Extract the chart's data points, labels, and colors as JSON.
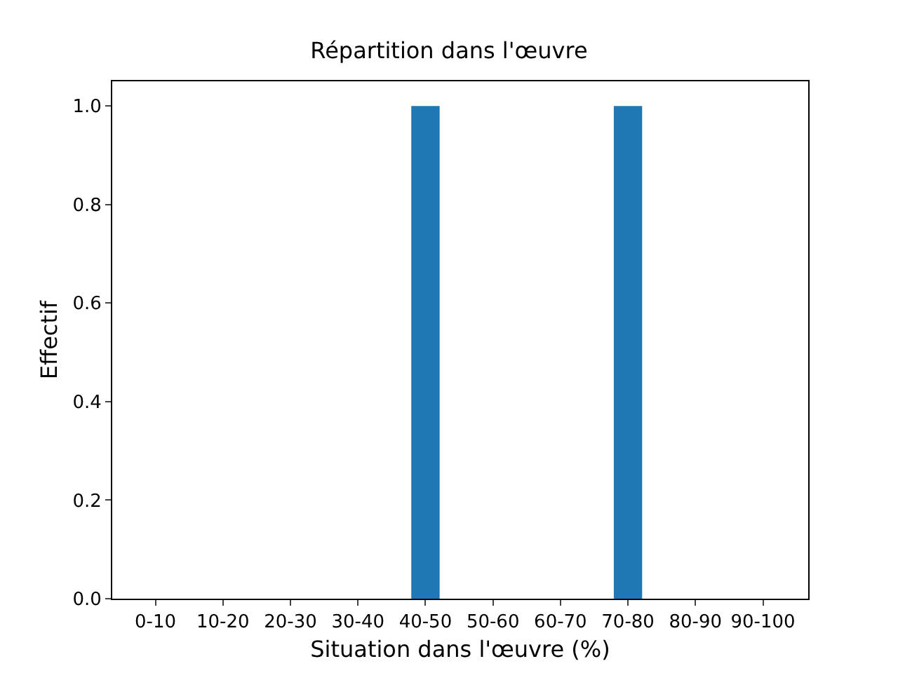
{
  "chart_data": {
    "type": "bar",
    "title": "Répartition dans l'œuvre",
    "xlabel": "Situation dans l'œuvre (%)",
    "ylabel": "Effectif",
    "categories": [
      "0-10",
      "10-20",
      "20-30",
      "30-40",
      "40-50",
      "50-60",
      "60-70",
      "70-80",
      "80-90",
      "90-100"
    ],
    "values": [
      0,
      0,
      0,
      0,
      1,
      0,
      0,
      1,
      0,
      0
    ],
    "color": "#1f77b4",
    "ylim": [
      0,
      1.05
    ],
    "yticks": [
      {
        "value": 0,
        "label": "0.0"
      },
      {
        "value": 0.2,
        "label": "0.2"
      },
      {
        "value": 0.4,
        "label": "0.4"
      },
      {
        "value": 0.6,
        "label": "0.6"
      },
      {
        "value": 0.8,
        "label": "0.8"
      },
      {
        "value": 1,
        "label": "1.0"
      }
    ]
  }
}
